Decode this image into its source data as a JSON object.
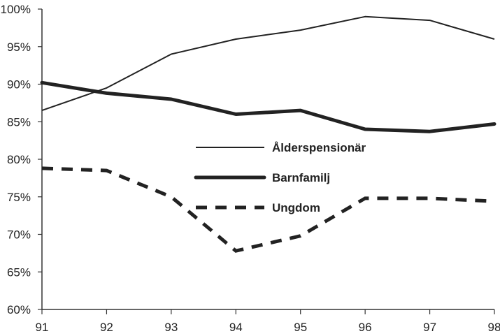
{
  "chart_data": {
    "type": "line",
    "x": [
      "91",
      "92",
      "93",
      "94",
      "95",
      "96",
      "97",
      "98"
    ],
    "yticks": [
      "60%",
      "65%",
      "70%",
      "75%",
      "80%",
      "85%",
      "90%",
      "95%",
      "100%"
    ],
    "ylim": [
      60,
      100
    ],
    "grid": false,
    "legend_position": "center",
    "series": [
      {
        "name": "Ålderspensionär",
        "values": [
          86.5,
          89.5,
          94,
          96,
          97.2,
          99,
          98.5,
          96
        ],
        "style": "thin",
        "color": "#222222"
      },
      {
        "name": "Barnfamilj",
        "values": [
          90.2,
          88.8,
          88,
          86,
          86.5,
          84,
          83.7,
          84.7
        ],
        "style": "thick",
        "color": "#222222"
      },
      {
        "name": "Ungdom",
        "values": [
          78.8,
          78.5,
          75,
          67.8,
          69.8,
          74.8,
          74.8,
          74.4
        ],
        "style": "dashed",
        "color": "#222222"
      }
    ]
  }
}
